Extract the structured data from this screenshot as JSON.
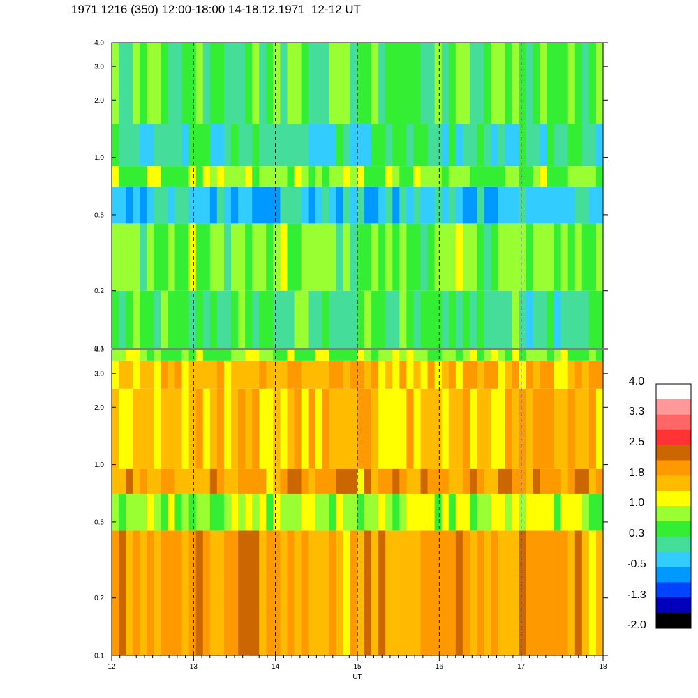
{
  "title": "1971 1216 (350) 12:00-18:00 14-18.12.1971  12-12 UT",
  "chart_data": {
    "type": "heatmap",
    "title": "1971 1216 (350) 12:00-18:00 14-18.12.1971  12-12 UT",
    "xlabel": "UT",
    "xlim": [
      12,
      18
    ],
    "x_ticks": [
      "12",
      "13",
      "14",
      "15",
      "16",
      "17",
      "18"
    ],
    "x_dashed_gridlines": [
      13,
      14,
      15,
      16,
      17
    ],
    "y_scale": "log",
    "grid": false,
    "panels": [
      {
        "name": "upper",
        "ylim": [
          0.1,
          4.0
        ],
        "y_ticks": [
          "0.1",
          "0.2",
          "0.5",
          "1.0",
          "2.0",
          "3.0",
          "4.0"
        ],
        "bands": [
          {
            "ymin": 0.1,
            "ymax": 0.2,
            "level": 0.3
          },
          {
            "ymin": 0.2,
            "ymax": 0.45,
            "level": 0.6
          },
          {
            "ymin": 0.45,
            "ymax": 0.7,
            "level": -0.3
          },
          {
            "ymin": 0.7,
            "ymax": 0.9,
            "level": 0.7
          },
          {
            "ymin": 0.9,
            "ymax": 1.5,
            "level": 0.0
          },
          {
            "ymin": 1.5,
            "ymax": 4.0,
            "level": 0.5
          }
        ]
      },
      {
        "name": "lower",
        "ylim": [
          0.1,
          4.0
        ],
        "y_ticks": [
          "0.1",
          "0.2",
          "0.5",
          "1.0",
          "2.0",
          "3.0",
          "4.0"
        ],
        "bands": [
          {
            "ymin": 0.1,
            "ymax": 0.45,
            "level": 1.8
          },
          {
            "ymin": 0.45,
            "ymax": 0.7,
            "level": 0.9
          },
          {
            "ymin": 0.7,
            "ymax": 0.95,
            "level": 1.8
          },
          {
            "ymin": 0.95,
            "ymax": 2.5,
            "level": 1.5
          },
          {
            "ymin": 2.5,
            "ymax": 3.5,
            "level": 1.7
          },
          {
            "ymin": 3.5,
            "ymax": 4.0,
            "level": 0.8
          }
        ]
      }
    ],
    "colorbar": {
      "labels": [
        "4.0",
        "3.3",
        "2.5",
        "1.8",
        "1.0",
        "0.3",
        "-0.5",
        "-1.3",
        "-2.0"
      ],
      "colors": [
        "#ffffff",
        "#ff9999",
        "#ff6666",
        "#ff3333",
        "#cc6600",
        "#ff9900",
        "#ffbb00",
        "#ffff00",
        "#99ff33",
        "#33ee33",
        "#44dd99",
        "#33ccff",
        "#0099ff",
        "#0044ff",
        "#0000bb",
        "#000000"
      ]
    }
  }
}
